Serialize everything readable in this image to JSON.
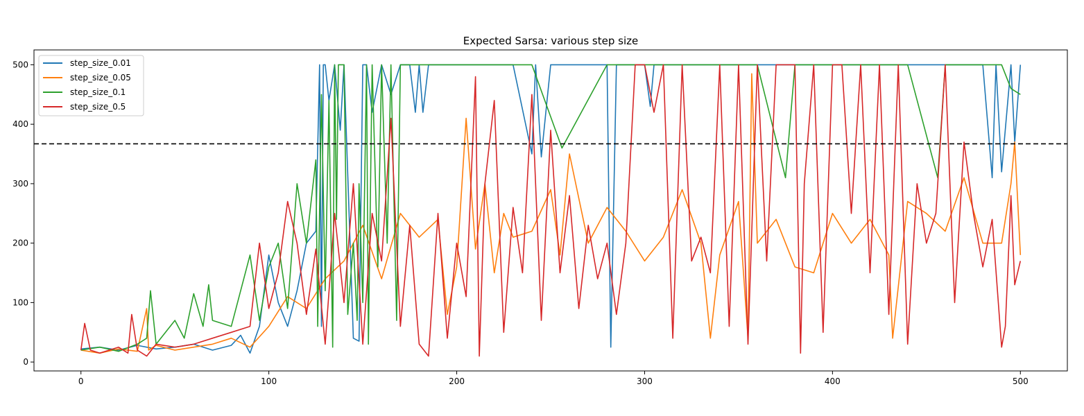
{
  "chart_data": {
    "type": "line",
    "title": "Expected Sarsa: various step size",
    "xlabel": "",
    "ylabel": "",
    "xlim": [
      -25,
      525
    ],
    "ylim": [
      -15,
      525
    ],
    "xticks": [
      0,
      100,
      200,
      300,
      400,
      500
    ],
    "yticks": [
      0,
      100,
      200,
      300,
      400,
      500
    ],
    "grid": false,
    "legend_position": "top-left",
    "reference_line": {
      "y": 367,
      "style": "dashed",
      "color": "#000000"
    },
    "series": [
      {
        "name": "step_size_0.01",
        "color": "#1f77b4",
        "x": [
          0,
          10,
          20,
          30,
          40,
          50,
          60,
          70,
          80,
          85,
          90,
          95,
          100,
          105,
          110,
          115,
          120,
          125,
          127,
          128,
          129,
          130,
          132,
          135,
          138,
          140,
          145,
          148,
          150,
          152,
          155,
          160,
          165,
          170,
          175,
          178,
          180,
          182,
          185,
          190,
          200,
          210,
          220,
          230,
          240,
          242,
          245,
          250,
          260,
          270,
          275,
          280,
          282,
          285,
          290,
          300,
          303,
          305,
          310,
          320,
          330,
          340,
          350,
          360,
          370,
          380,
          390,
          400,
          410,
          420,
          430,
          440,
          450,
          460,
          470,
          480,
          485,
          487,
          490,
          495,
          497,
          500
        ],
        "values": [
          22,
          25,
          20,
          28,
          22,
          25,
          30,
          20,
          28,
          45,
          15,
          60,
          180,
          100,
          60,
          120,
          200,
          220,
          500,
          60,
          500,
          500,
          440,
          500,
          390,
          500,
          40,
          35,
          500,
          500,
          420,
          500,
          450,
          500,
          500,
          420,
          500,
          420,
          500,
          500,
          500,
          500,
          500,
          500,
          350,
          500,
          345,
          500,
          500,
          500,
          500,
          500,
          25,
          500,
          500,
          500,
          430,
          500,
          500,
          500,
          500,
          500,
          500,
          500,
          500,
          500,
          500,
          500,
          500,
          500,
          500,
          500,
          500,
          500,
          500,
          500,
          310,
          500,
          320,
          500,
          370,
          500
        ]
      },
      {
        "name": "step_size_0.05",
        "color": "#ff7f0e",
        "x": [
          0,
          10,
          20,
          30,
          35,
          36,
          40,
          50,
          60,
          70,
          80,
          90,
          100,
          110,
          120,
          130,
          140,
          150,
          160,
          170,
          180,
          190,
          195,
          200,
          205,
          210,
          215,
          220,
          225,
          230,
          240,
          250,
          255,
          260,
          270,
          280,
          290,
          300,
          310,
          320,
          330,
          335,
          340,
          350,
          355,
          357,
          360,
          370,
          380,
          390,
          400,
          410,
          420,
          430,
          432,
          440,
          450,
          460,
          470,
          480,
          490,
          495,
          497,
          500
        ],
        "values": [
          20,
          15,
          22,
          18,
          90,
          20,
          28,
          20,
          25,
          30,
          40,
          25,
          60,
          110,
          90,
          140,
          170,
          230,
          140,
          250,
          210,
          240,
          80,
          160,
          410,
          190,
          300,
          150,
          250,
          210,
          220,
          290,
          180,
          350,
          200,
          260,
          220,
          170,
          210,
          290,
          200,
          40,
          180,
          270,
          40,
          485,
          200,
          240,
          160,
          150,
          250,
          200,
          240,
          180,
          40,
          270,
          250,
          220,
          310,
          200,
          200,
          300,
          370,
          180
        ]
      },
      {
        "name": "step_size_0.1",
        "color": "#2ca02c",
        "x": [
          0,
          10,
          20,
          30,
          35,
          37,
          40,
          50,
          55,
          60,
          65,
          68,
          70,
          80,
          90,
          95,
          100,
          105,
          110,
          115,
          120,
          125,
          126,
          128,
          130,
          132,
          134,
          135,
          136,
          137,
          138,
          140,
          142,
          145,
          147,
          148,
          150,
          152,
          153,
          155,
          158,
          160,
          163,
          165,
          168,
          170,
          180,
          190,
          200,
          220,
          230,
          240,
          256,
          280,
          290,
          300,
          310,
          320,
          350,
          360,
          375,
          380,
          420,
          440,
          456,
          460,
          480,
          490,
          495,
          500
        ],
        "values": [
          20,
          25,
          18,
          30,
          40,
          120,
          30,
          70,
          40,
          115,
          60,
          130,
          70,
          60,
          180,
          70,
          160,
          200,
          90,
          300,
          200,
          340,
          60,
          450,
          120,
          440,
          25,
          500,
          240,
          500,
          500,
          500,
          80,
          200,
          70,
          300,
          100,
          500,
          30,
          500,
          160,
          500,
          200,
          500,
          70,
          500,
          500,
          500,
          500,
          500,
          500,
          500,
          360,
          500,
          500,
          500,
          500,
          500,
          500,
          500,
          310,
          500,
          500,
          500,
          310,
          500,
          500,
          500,
          460,
          450
        ]
      },
      {
        "name": "step_size_0.5",
        "color": "#d62728",
        "x": [
          0,
          2,
          5,
          10,
          15,
          20,
          25,
          27,
          30,
          35,
          40,
          50,
          60,
          70,
          80,
          90,
          95,
          100,
          105,
          110,
          115,
          120,
          125,
          130,
          135,
          140,
          145,
          150,
          155,
          160,
          165,
          170,
          175,
          180,
          185,
          190,
          195,
          200,
          205,
          210,
          212,
          215,
          220,
          225,
          230,
          235,
          240,
          245,
          250,
          255,
          260,
          265,
          270,
          275,
          280,
          285,
          290,
          295,
          300,
          305,
          310,
          315,
          320,
          325,
          330,
          335,
          340,
          345,
          350,
          355,
          360,
          365,
          370,
          375,
          380,
          383,
          385,
          390,
          395,
          400,
          405,
          410,
          415,
          420,
          425,
          430,
          435,
          440,
          445,
          450,
          455,
          460,
          465,
          470,
          475,
          480,
          485,
          490,
          492,
          495,
          497,
          500
        ],
        "values": [
          20,
          65,
          20,
          15,
          20,
          25,
          15,
          80,
          20,
          10,
          30,
          25,
          30,
          40,
          50,
          60,
          200,
          90,
          150,
          270,
          200,
          80,
          190,
          30,
          250,
          100,
          300,
          30,
          250,
          170,
          410,
          60,
          230,
          30,
          10,
          250,
          40,
          200,
          110,
          480,
          10,
          300,
          440,
          50,
          260,
          150,
          450,
          70,
          390,
          150,
          280,
          90,
          230,
          140,
          200,
          80,
          200,
          500,
          500,
          420,
          500,
          40,
          500,
          170,
          210,
          150,
          500,
          60,
          500,
          30,
          500,
          170,
          500,
          500,
          500,
          15,
          300,
          500,
          50,
          500,
          500,
          250,
          500,
          150,
          500,
          80,
          500,
          30,
          300,
          200,
          250,
          500,
          100,
          370,
          250,
          160,
          240,
          25,
          60,
          280,
          130,
          170
        ]
      }
    ]
  }
}
